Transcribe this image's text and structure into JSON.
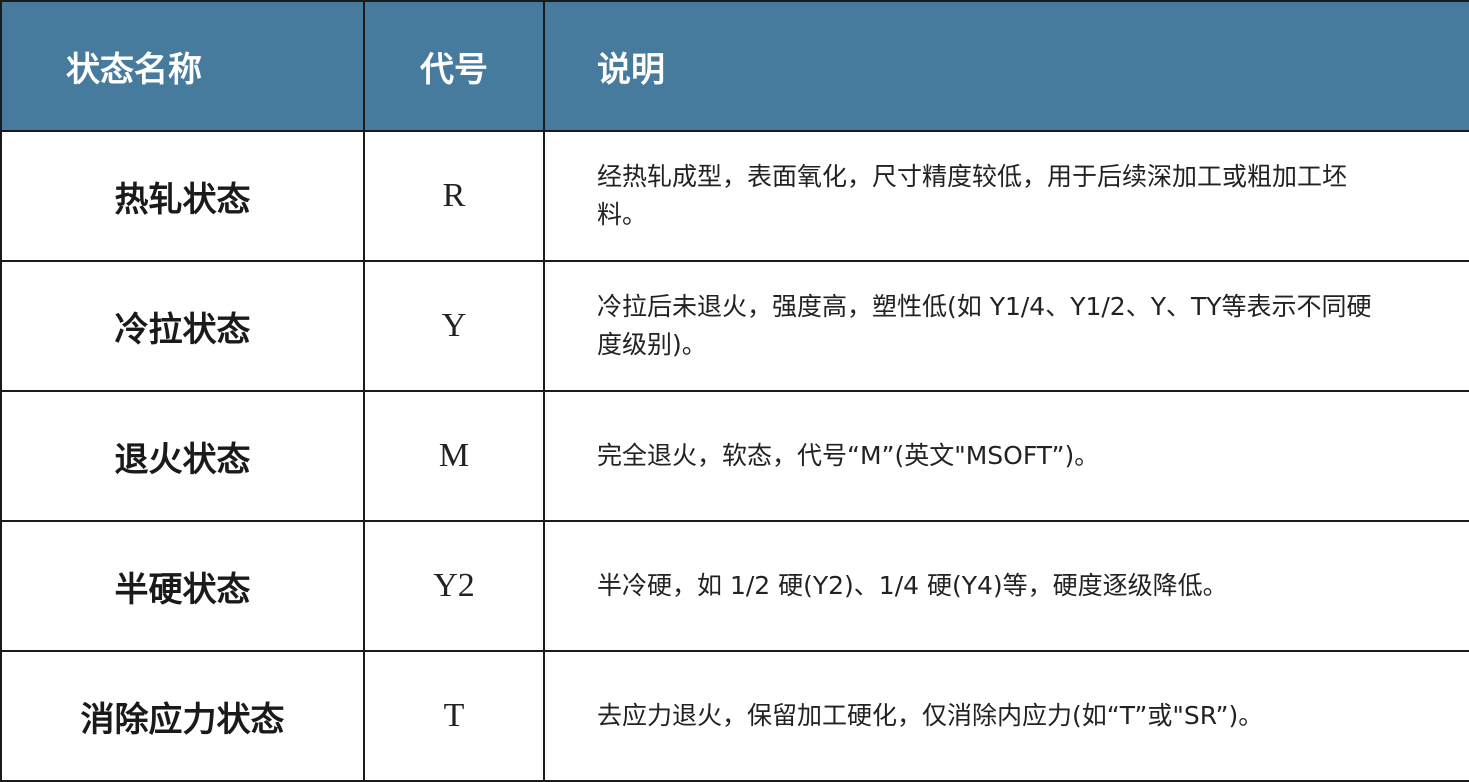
{
  "header_color": "#477b9e",
  "headers": [
    "状态名称",
    "代号",
    "说明"
  ],
  "rows": [
    {
      "name": "热轧状态",
      "code": "R",
      "desc": "经热轧成型，表面氧化，尺寸精度较低，用于后续深加工或粗加工坯料。"
    },
    {
      "name": "冷拉状态",
      "code": "Y",
      "desc": "冷拉后未退火，强度高，塑性低(如 Y1/4、Y1/2、Y、TY等表示不同硬度级别)。"
    },
    {
      "name": "退火状态",
      "code": "M",
      "desc": "完全退火，软态，代号“M”(英文\"MSOFT”)。"
    },
    {
      "name": "半硬状态",
      "code": "Y2",
      "desc": "半冷硬，如 1/2 硬(Y2)、1/4 硬(Y4)等，硬度逐级降低。"
    },
    {
      "name": "消除应力状态",
      "code": "T",
      "desc": "去应力退火，保留加工硬化，仅消除内应力(如“T”或\"SR”)。"
    }
  ]
}
